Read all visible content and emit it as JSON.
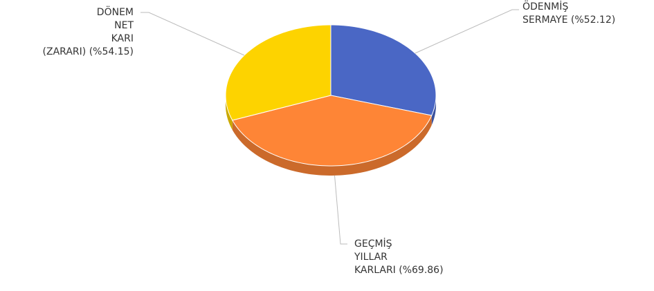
{
  "chart_data": {
    "type": "pie3d",
    "categories": [
      [
        "ÖDENMİŞ",
        "SERMAYE"
      ],
      [
        "GEÇMİŞ",
        "YILLAR",
        "KARLARI"
      ],
      [
        "DÖNEM",
        "NET",
        "KARI",
        "(ZARARI)"
      ]
    ],
    "values": [
      52.12,
      69.86,
      54.15
    ],
    "value_labels": [
      "(%52.12)",
      "(%69.86)",
      "(%54.15)"
    ],
    "colors": [
      "#4a67c5",
      "#fe8536",
      "#fdd300"
    ]
  }
}
